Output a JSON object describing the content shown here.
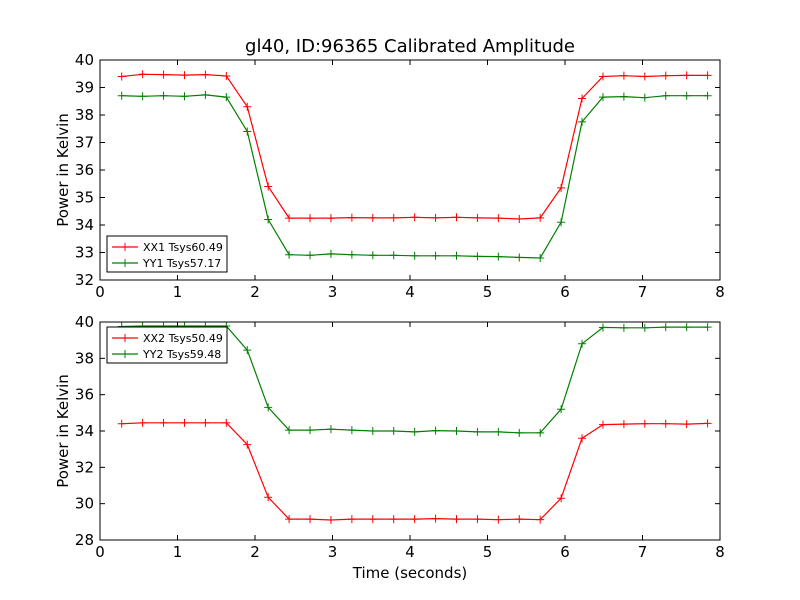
{
  "chart_data": [
    {
      "type": "line",
      "title": "gl40, ID:96365 Calibrated Amplitude",
      "xlabel": "",
      "ylabel": "Power in Kelvin",
      "xlim": [
        0,
        8
      ],
      "ylim": [
        32,
        40
      ],
      "xticks": [
        "0",
        "1",
        "2",
        "3",
        "4",
        "5",
        "6",
        "7",
        "8"
      ],
      "yticks": [
        "32",
        "33",
        "34",
        "35",
        "36",
        "37",
        "38",
        "39",
        "40"
      ],
      "grid": false,
      "legend_position": "lower-left",
      "x": [
        0.28,
        0.55,
        0.82,
        1.09,
        1.36,
        1.63,
        1.9,
        2.17,
        2.44,
        2.71,
        2.98,
        3.25,
        3.52,
        3.79,
        4.06,
        4.33,
        4.6,
        4.87,
        5.14,
        5.41,
        5.68,
        5.95,
        6.22,
        6.49,
        6.76,
        7.03,
        7.3,
        7.57,
        7.84
      ],
      "series": [
        {
          "name": "XX1 Tsys60.49",
          "color": "#ff0000",
          "values": [
            39.4,
            39.48,
            39.47,
            39.45,
            39.47,
            39.42,
            38.3,
            35.4,
            34.25,
            34.25,
            34.25,
            34.27,
            34.26,
            34.26,
            34.28,
            34.26,
            34.28,
            34.26,
            34.25,
            34.22,
            34.26,
            35.35,
            38.6,
            39.4,
            39.43,
            39.4,
            39.43,
            39.44,
            39.44
          ]
        },
        {
          "name": "YY1 Tsys57.17",
          "color": "#008000",
          "values": [
            38.7,
            38.68,
            38.7,
            38.68,
            38.73,
            38.65,
            37.4,
            34.2,
            32.92,
            32.9,
            32.95,
            32.92,
            32.9,
            32.9,
            32.88,
            32.88,
            32.88,
            32.86,
            32.85,
            32.82,
            32.8,
            34.1,
            37.75,
            38.65,
            38.67,
            38.63,
            38.7,
            38.7,
            38.7
          ]
        }
      ]
    },
    {
      "type": "line",
      "title": "",
      "xlabel": "Time (seconds)",
      "ylabel": "Power in Kelvin",
      "xlim": [
        0,
        8
      ],
      "ylim": [
        28,
        40
      ],
      "xticks": [
        "0",
        "1",
        "2",
        "3",
        "4",
        "5",
        "6",
        "7",
        "8"
      ],
      "yticks": [
        "28",
        "30",
        "32",
        "34",
        "36",
        "38",
        "40"
      ],
      "grid": false,
      "legend_position": "upper-left",
      "x": [
        0.28,
        0.55,
        0.82,
        1.09,
        1.36,
        1.63,
        1.9,
        2.17,
        2.44,
        2.71,
        2.98,
        3.25,
        3.52,
        3.79,
        4.06,
        4.33,
        4.6,
        4.87,
        5.14,
        5.41,
        5.68,
        5.95,
        6.22,
        6.49,
        6.76,
        7.03,
        7.3,
        7.57,
        7.84
      ],
      "series": [
        {
          "name": "XX2 Tsys50.49",
          "color": "#ff0000",
          "values": [
            34.4,
            34.45,
            34.45,
            34.45,
            34.45,
            34.45,
            33.25,
            30.35,
            29.15,
            29.15,
            29.1,
            29.15,
            29.15,
            29.15,
            29.15,
            29.18,
            29.15,
            29.15,
            29.12,
            29.15,
            29.12,
            30.3,
            33.6,
            34.35,
            34.38,
            34.4,
            34.4,
            34.38,
            34.42
          ]
        },
        {
          "name": "YY2 Tsys59.48",
          "color": "#008000",
          "values": [
            39.75,
            39.78,
            39.78,
            39.78,
            39.78,
            39.78,
            38.45,
            35.3,
            34.05,
            34.05,
            34.1,
            34.05,
            34.0,
            34.0,
            33.95,
            34.02,
            34.0,
            33.95,
            33.95,
            33.9,
            33.9,
            35.2,
            38.8,
            39.7,
            39.68,
            39.68,
            39.72,
            39.72,
            39.72
          ]
        }
      ]
    }
  ]
}
